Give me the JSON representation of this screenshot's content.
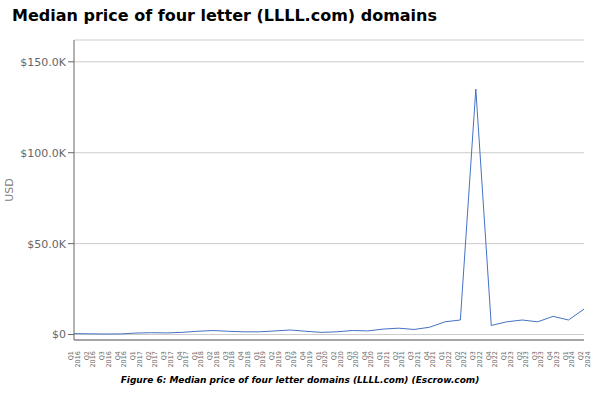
{
  "chart_data": {
    "type": "line",
    "title": "Median price of four letter (LLLL.com) domains",
    "caption": "Figure 6: Median price of four letter domains (LLLL.com) (Escrow.com)",
    "ylabel": "USD",
    "color": "#4472c4",
    "grid": true,
    "categories": [
      "Q1\n2016",
      "Q2\n2016",
      "Q3\n2016",
      "Q4\n2016",
      "Q1\n2017",
      "Q2\n2017",
      "Q3\n2017",
      "Q4\n2017",
      "Q1\n2018",
      "Q2\n2018",
      "Q3\n2018",
      "Q4\n2018",
      "Q1\n2019",
      "Q2\n2019",
      "Q3\n2019",
      "Q4\n2019",
      "Q1\n2020",
      "Q2\n2020",
      "Q3\n2020",
      "Q4\n2020",
      "Q1\n2021",
      "Q2\n2021",
      "Q3\n2021",
      "Q4\n2021",
      "Q1\n2022",
      "Q2\n2022",
      "Q3\n2022",
      "Q4\n2022",
      "Q1\n2023",
      "Q2\n2023",
      "Q3\n2023",
      "Q4\n2023",
      "Q1\n2024",
      "Q2\n2024"
    ],
    "values": [
      500,
      400,
      300,
      350,
      800,
      1000,
      900,
      1200,
      1800,
      2200,
      1800,
      1500,
      1500,
      2000,
      2500,
      1800,
      1200,
      1500,
      2200,
      2000,
      3000,
      3500,
      2800,
      4000,
      7000,
      8000,
      135000,
      5000,
      7000,
      8000,
      7000,
      10000,
      8000,
      14000
    ],
    "ylim": [
      -3000,
      162000
    ],
    "yticks": [
      {
        "value": 0,
        "label": "$0"
      },
      {
        "value": 50000,
        "label": "$50.0K"
      },
      {
        "value": 100000,
        "label": "$100.0K"
      },
      {
        "value": 150000,
        "label": "$150.0K"
      }
    ]
  }
}
